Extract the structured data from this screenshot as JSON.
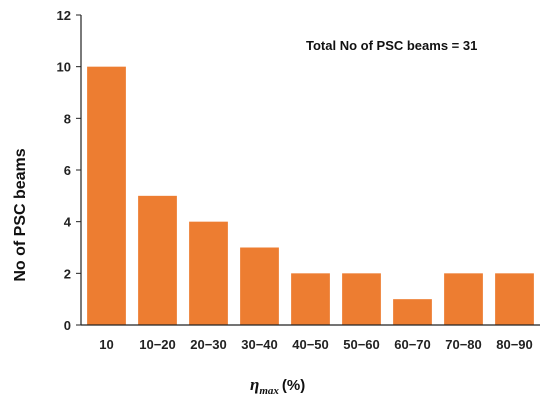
{
  "chart_data": {
    "type": "bar",
    "title": "",
    "annotation": "Total No of PSC beams = 31",
    "categories": [
      "10",
      "10−20",
      "20−30",
      "30−40",
      "40−50",
      "50−60",
      "60−70",
      "70−80",
      "80−90"
    ],
    "values": [
      10,
      5,
      4,
      3,
      2,
      2,
      1,
      2,
      2
    ],
    "ylabel": "No of PSC beams",
    "xlabel": {
      "symbol": "η",
      "subscript": "max",
      "unit": "(%)"
    },
    "ylim": [
      0,
      12
    ],
    "yticks": [
      "0",
      "2",
      "4",
      "6",
      "8",
      "10",
      "12"
    ],
    "grid": false,
    "legend": "none",
    "bar_color": "#ED7D31"
  }
}
